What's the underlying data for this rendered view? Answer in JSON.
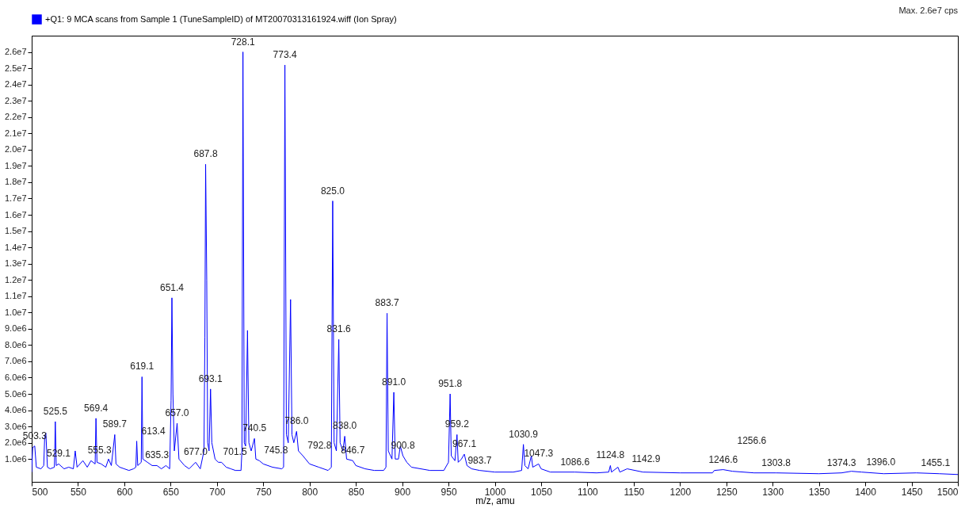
{
  "chart_data": {
    "type": "line",
    "xlabel": "m/z, amu",
    "legend": "top left",
    "x": [
      500,
      501,
      503.3,
      505,
      510,
      513,
      514,
      515.3,
      517,
      520,
      524.5,
      525.5,
      526.5,
      529.1,
      535,
      540,
      545,
      547,
      549,
      555.3,
      560,
      564,
      568.5,
      569.4,
      570.5,
      575,
      580,
      583,
      586,
      589.7,
      591,
      595,
      600,
      605,
      610,
      612.5,
      613.4,
      614.5,
      618.3,
      619.1,
      620,
      625,
      630,
      635.3,
      640,
      645,
      649,
      650.5,
      651.4,
      652.5,
      654,
      657.0,
      659,
      665,
      670,
      677.0,
      682,
      686,
      687,
      687.8,
      689,
      690,
      691.5,
      693.1,
      694.5,
      698,
      701.5,
      705,
      710,
      715,
      720,
      726,
      727,
      728.1,
      729.5,
      731,
      733,
      734.5,
      737,
      740.5,
      742,
      745.8,
      750,
      760,
      770,
      772,
      773.4,
      775,
      777,
      779.5,
      781,
      783,
      786.0,
      788,
      792.8,
      800,
      810,
      820,
      823.5,
      825.0,
      826.5,
      829,
      831.6,
      833,
      836,
      838.0,
      840,
      846.7,
      850,
      860,
      870,
      880,
      882.5,
      883.7,
      885,
      889,
      891.0,
      892.5,
      896,
      898,
      900.8,
      905,
      910,
      920,
      930,
      945,
      950,
      951.8,
      953,
      957,
      959.2,
      960.5,
      964,
      967.1,
      970,
      975,
      983.7,
      1000,
      1020,
      1029,
      1030.9,
      1032.5,
      1036,
      1039.5,
      1041,
      1047.3,
      1050,
      1060,
      1086.6,
      1110,
      1123,
      1124.8,
      1126,
      1133,
      1135,
      1142.9,
      1160,
      1200,
      1235,
      1237,
      1246.6,
      1256.6,
      1280,
      1303.8,
      1350,
      1374.3,
      1385,
      1396.0,
      1420,
      1455.1,
      1480,
      1500
    ],
    "series": [
      {
        "name": "+Q1: 9 MCA scans from Sample 1 (TuneSampleID) of MT20070313161924.wiff (Ion Spray)",
        "color": "#0000ff",
        "values": [
          200000.0,
          1700000.0,
          1800000.0,
          500000.0,
          400000.0,
          600000.0,
          2300000.0,
          2600000.0,
          500000.0,
          400000.0,
          500000.0,
          3300000.0,
          600000.0,
          700000.0,
          400000.0,
          500000.0,
          400000.0,
          1500000.0,
          500000.0,
          900000.0,
          500000.0,
          900000.0,
          700000.0,
          3500000.0,
          800000.0,
          700000.0,
          500000.0,
          1000000.0,
          600000.0,
          2500000.0,
          700000.0,
          500000.0,
          400000.0,
          300000.0,
          400000.0,
          500000.0,
          2100000.0,
          600000.0,
          800000.0,
          6050000.0,
          1000000.0,
          800000.0,
          600000.0,
          600000.0,
          400000.0,
          600000.0,
          400000.0,
          4600000.0,
          10900000.0,
          5000000.0,
          1500000.0,
          3200000.0,
          1000000.0,
          600000.0,
          400000.0,
          800000.0,
          400000.0,
          1500000.0,
          8500000.0,
          19100000.0,
          12000000.0,
          2000000.0,
          1500000.0,
          5300000.0,
          2000000.0,
          1000000.0,
          800000.0,
          800000.0,
          500000.0,
          400000.0,
          300000.0,
          300000.0,
          1500000.0,
          26000000.0,
          2000000.0,
          1800000.0,
          8900000.0,
          2000000.0,
          1500000.0,
          2260000.0,
          1000000.0,
          900000.0,
          700000.0,
          500000.0,
          400000.0,
          500000.0,
          25200000.0,
          2500000.0,
          2000000.0,
          10800000.0,
          2500000.0,
          2000000.0,
          2700000.0,
          1500000.0,
          1200000.0,
          700000.0,
          500000.0,
          300000.0,
          500000.0,
          16850000.0,
          2000000.0,
          1500000.0,
          8340000.0,
          2000000.0,
          1500000.0,
          2400000.0,
          1000000.0,
          900000.0,
          600000.0,
          400000.0,
          300000.0,
          300000.0,
          500000.0,
          9950000.0,
          1500000.0,
          1000000.0,
          5100000.0,
          1000000.0,
          1000000.0,
          1800000.0,
          1200000.0,
          800000.0,
          500000.0,
          400000.0,
          300000.0,
          300000.0,
          800000.0,
          5000000.0,
          1200000.0,
          900000.0,
          2500000.0,
          800000.0,
          1000000.0,
          1300000.0,
          600000.0,
          400000.0,
          300000.0,
          200000.0,
          200000.0,
          300000.0,
          1900000.0,
          600000.0,
          400000.0,
          1200000.0,
          500000.0,
          700000.0,
          400000.0,
          200000.0,
          200000.0,
          150000.0,
          200000.0,
          600000.0,
          200000.0,
          500000.0,
          200000.0,
          400000.0,
          200000.0,
          150000.0,
          150000.0,
          300000.0,
          350000.0,
          250000.0,
          150000.0,
          150000.0,
          100000.0,
          150000.0,
          250000.0,
          200000.0,
          100000.0,
          150000.0,
          100000.0,
          50000.0
        ]
      }
    ],
    "xlim": [
      500,
      1500
    ],
    "xticks": [
      500,
      550,
      600,
      650,
      700,
      750,
      800,
      850,
      900,
      950,
      1000,
      1050,
      1100,
      1150,
      1200,
      1250,
      1300,
      1350,
      1400,
      1450,
      1500
    ],
    "ylim": [
      -400000.0,
      27000000.0
    ],
    "yticks": [
      {
        "value": 1000000.0,
        "label": "1.0e6"
      },
      {
        "value": 2000000.0,
        "label": "2.0e6"
      },
      {
        "value": 3000000.0,
        "label": "3.0e6"
      },
      {
        "value": 4000000.0,
        "label": "4.0e6"
      },
      {
        "value": 5000000.0,
        "label": "5.0e6"
      },
      {
        "value": 6000000.0,
        "label": "6.0e6"
      },
      {
        "value": 7000000.0,
        "label": "7.0e6"
      },
      {
        "value": 8000000.0,
        "label": "8.0e6"
      },
      {
        "value": 9000000.0,
        "label": "9.0e6"
      },
      {
        "value": 10000000.0,
        "label": "1.0e7"
      },
      {
        "value": 11000000.0,
        "label": "1.1e7"
      },
      {
        "value": 12000000.0,
        "label": "1.2e7"
      },
      {
        "value": 13000000.0,
        "label": "1.3e7"
      },
      {
        "value": 14000000.0,
        "label": "1.4e7"
      },
      {
        "value": 15000000.0,
        "label": "1.5e7"
      },
      {
        "value": 16000000.0,
        "label": "1.6e7"
      },
      {
        "value": 17000000.0,
        "label": "1.7e7"
      },
      {
        "value": 18000000.0,
        "label": "1.8e7"
      },
      {
        "value": 19000000.0,
        "label": "1.9e7"
      },
      {
        "value": 20000000.0,
        "label": "2.0e7"
      },
      {
        "value": 21000000.0,
        "label": "2.1e7"
      },
      {
        "value": 22000000.0,
        "label": "2.2e7"
      },
      {
        "value": 23000000.0,
        "label": "2.3e7"
      },
      {
        "value": 24000000.0,
        "label": "2.4e7"
      },
      {
        "value": 25000000.0,
        "label": "2.5e7"
      },
      {
        "value": 26000000.0,
        "label": "2.6e7"
      }
    ],
    "annotations": [
      "Max. 2.6e7 cps",
      {
        "text": "503.3",
        "x": 503.3,
        "y": 1800000.0
      },
      {
        "text": "525.5",
        "x": 525.5,
        "y": 3300000.0
      },
      {
        "text": "529.1",
        "x": 529.1,
        "y": 700000.0
      },
      {
        "text": "555.3",
        "x": 555.3,
        "y": 900000.0
      },
      {
        "text": "569.4",
        "x": 569.4,
        "y": 3500000.0
      },
      {
        "text": "589.7",
        "x": 589.7,
        "y": 2500000.0
      },
      {
        "text": "613.4",
        "x": 613.4,
        "y": 2100000.0
      },
      {
        "text": "619.1",
        "x": 619.1,
        "y": 6050000.0
      },
      {
        "text": "635.3",
        "x": 635.3,
        "y": 600000.0
      },
      {
        "text": "651.4",
        "x": 651.4,
        "y": 10900000.0
      },
      {
        "text": "657.0",
        "x": 657.0,
        "y": 3200000.0
      },
      {
        "text": "677.0",
        "x": 677.0,
        "y": 800000.0
      },
      {
        "text": "687.8",
        "x": 687.8,
        "y": 19100000.0
      },
      {
        "text": "693.1",
        "x": 693.1,
        "y": 5300000.0
      },
      {
        "text": "701.5",
        "x": 701.5,
        "y": 800000.0
      },
      {
        "text": "728.1",
        "x": 728.1,
        "y": 26000000.0
      },
      {
        "text": "740.5",
        "x": 740.5,
        "y": 2260000.0
      },
      {
        "text": "745.8",
        "x": 745.8,
        "y": 900000.0
      },
      {
        "text": "773.4",
        "x": 773.4,
        "y": 25200000.0
      },
      {
        "text": "786.0",
        "x": 786.0,
        "y": 2700000.0
      },
      {
        "text": "792.8",
        "x": 792.8,
        "y": 1200000.0
      },
      {
        "text": "825.0",
        "x": 825.0,
        "y": 16850000.0
      },
      {
        "text": "831.6",
        "x": 831.6,
        "y": 8340000.0
      },
      {
        "text": "838.0",
        "x": 838.0,
        "y": 2400000.0
      },
      {
        "text": "846.7",
        "x": 846.7,
        "y": 900000.0
      },
      {
        "text": "883.7",
        "x": 883.7,
        "y": 9950000.0
      },
      {
        "text": "891.0",
        "x": 891.0,
        "y": 5100000.0
      },
      {
        "text": "900.8",
        "x": 900.8,
        "y": 1200000.0
      },
      {
        "text": "951.8",
        "x": 951.8,
        "y": 5000000.0
      },
      {
        "text": "959.2",
        "x": 959.2,
        "y": 2500000.0
      },
      {
        "text": "967.1",
        "x": 967.1,
        "y": 1300000.0
      },
      {
        "text": "983.7",
        "x": 983.7,
        "y": 300000.0
      },
      {
        "text": "1030.9",
        "x": 1030.9,
        "y": 1900000.0
      },
      {
        "text": "1047.3",
        "x": 1047.3,
        "y": 700000.0
      },
      {
        "text": "1086.6",
        "x": 1086.6,
        "y": 200000.0
      },
      {
        "text": "1124.8",
        "x": 1124.8,
        "y": 600000.0
      },
      {
        "text": "1142.9",
        "x": 1142.9,
        "y": 400000.0
      },
      {
        "text": "1246.6",
        "x": 1246.6,
        "y": 350000.0
      },
      {
        "text": "1256.6",
        "x": 1256.6,
        "y": 250000.0
      },
      {
        "text": "1303.8",
        "x": 1303.8,
        "y": 150000.0
      },
      {
        "text": "1374.3",
        "x": 1374.3,
        "y": 150000.0
      },
      {
        "text": "1396.0",
        "x": 1396.0,
        "y": 200000.0
      },
      {
        "text": "1455.1",
        "x": 1455.1,
        "y": 150000.0
      }
    ]
  }
}
